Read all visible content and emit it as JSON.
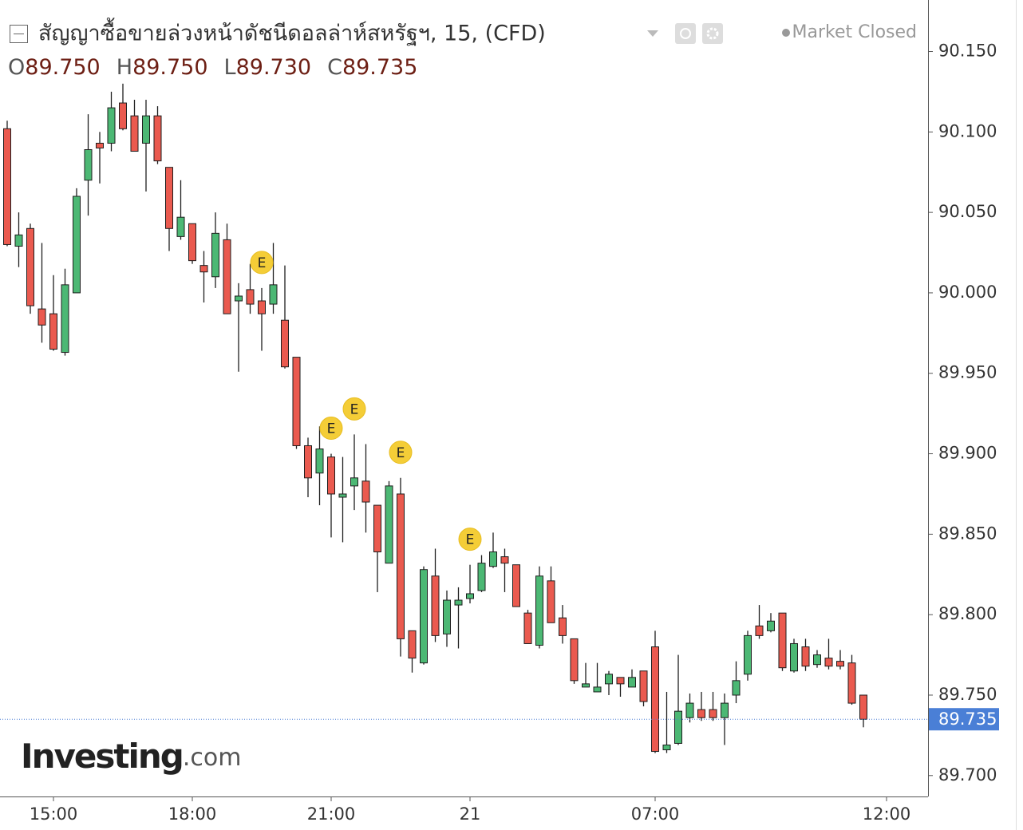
{
  "header": {
    "title": "สัญญาซื้อขายล่วงหน้าดัชนีดอลล่าห์สหรัฐฯ, 15, (CFD)",
    "status": "Market Closed",
    "ohlc": [
      {
        "key": "O",
        "value": "89.750"
      },
      {
        "key": "H",
        "value": "89.750"
      },
      {
        "key": "L",
        "value": "89.730"
      },
      {
        "key": "C",
        "value": "89.735"
      }
    ]
  },
  "watermark": {
    "brand": "Investing",
    "suffix": ".com"
  },
  "chart_data": {
    "type": "candlestick",
    "categories": [
      null,
      null,
      null,
      null,
      "15:00",
      null,
      null,
      null,
      null,
      null,
      null,
      null,
      null,
      null,
      null,
      null,
      "18:00",
      null,
      null,
      null,
      null,
      null,
      null,
      null,
      null,
      null,
      null,
      null,
      "21:00",
      null,
      null,
      null,
      null,
      null,
      null,
      null,
      null,
      null,
      null,
      null,
      "21",
      null,
      null,
      null,
      null,
      null,
      null,
      null,
      null,
      null,
      null,
      null,
      null,
      null,
      null,
      null,
      "07:00",
      null,
      null,
      null,
      null,
      null,
      null,
      null,
      null,
      null,
      null,
      null,
      null,
      null,
      null,
      null,
      null,
      null,
      null,
      null,
      "12:00"
    ],
    "open": [
      90.102,
      90.029,
      90.04,
      89.99,
      89.987,
      89.963,
      90.0,
      90.07,
      90.093,
      90.093,
      90.118,
      90.11,
      90.093,
      90.11,
      90.078,
      90.035,
      90.043,
      90.017,
      90.01,
      90.033,
      89.995,
      90.002,
      89.995,
      89.993,
      89.983,
      89.96,
      89.905,
      89.888,
      89.898,
      89.873,
      89.88,
      89.883,
      89.868,
      89.832,
      89.875,
      89.79,
      89.77,
      89.824,
      89.788,
      89.806,
      89.81,
      89.815,
      89.83,
      89.836,
      89.831,
      89.801,
      89.781,
      89.821,
      89.798,
      89.785,
      89.755,
      89.752,
      89.757,
      89.761,
      89.755,
      89.765,
      89.78,
      89.716,
      89.72,
      89.736,
      89.741,
      89.741,
      89.736,
      89.75,
      89.763,
      89.793,
      89.79,
      89.801,
      89.765,
      89.78,
      89.769,
      89.773,
      89.771,
      89.77,
      89.75,
      null,
      null
    ],
    "high": [
      90.107,
      90.05,
      90.043,
      90.031,
      90.011,
      90.015,
      90.065,
      90.111,
      90.1,
      90.125,
      90.13,
      90.12,
      90.12,
      90.116,
      90.078,
      90.07,
      90.043,
      90.026,
      90.05,
      90.043,
      90.006,
      90.018,
      90.003,
      90.031,
      90.017,
      89.96,
      89.91,
      89.917,
      89.9,
      89.898,
      89.912,
      89.906,
      89.868,
      89.883,
      89.885,
      89.79,
      89.83,
      89.841,
      89.815,
      89.817,
      89.831,
      89.837,
      89.851,
      89.841,
      89.831,
      89.803,
      89.83,
      89.83,
      89.806,
      89.785,
      89.77,
      89.77,
      89.765,
      89.761,
      89.766,
      89.765,
      89.79,
      89.752,
      89.775,
      89.751,
      89.752,
      89.752,
      89.751,
      89.771,
      89.79,
      89.806,
      89.801,
      89.801,
      89.785,
      89.785,
      89.778,
      89.785,
      89.778,
      89.775,
      89.75,
      null,
      null
    ],
    "low": [
      90.029,
      90.016,
      89.987,
      89.969,
      89.964,
      89.961,
      90.0,
      90.048,
      90.068,
      90.088,
      90.101,
      90.088,
      90.063,
      90.08,
      90.026,
      90.033,
      90.018,
      89.994,
      90.003,
      89.987,
      89.951,
      89.987,
      89.964,
      89.987,
      89.953,
      89.903,
      89.873,
      89.868,
      89.848,
      89.845,
      89.865,
      89.851,
      89.814,
      89.832,
      89.774,
      89.764,
      89.769,
      89.783,
      89.78,
      89.779,
      89.807,
      89.814,
      89.829,
      89.814,
      89.805,
      89.782,
      89.779,
      89.795,
      89.782,
      89.757,
      89.755,
      89.752,
      89.75,
      89.749,
      89.755,
      89.743,
      89.714,
      89.714,
      89.719,
      89.733,
      89.734,
      89.734,
      89.719,
      89.745,
      89.759,
      89.785,
      89.789,
      89.765,
      89.764,
      89.765,
      89.767,
      89.766,
      89.766,
      89.744,
      89.73,
      null,
      null
    ],
    "close": [
      90.03,
      90.036,
      89.992,
      89.98,
      89.965,
      90.005,
      90.06,
      90.089,
      90.09,
      90.115,
      90.102,
      90.088,
      90.11,
      90.082,
      90.04,
      90.047,
      90.02,
      90.013,
      90.037,
      89.987,
      89.998,
      89.993,
      89.987,
      90.005,
      89.954,
      89.905,
      89.885,
      89.903,
      89.875,
      89.875,
      89.885,
      89.87,
      89.839,
      89.88,
      89.785,
      89.773,
      89.828,
      89.787,
      89.809,
      89.809,
      89.813,
      89.832,
      89.839,
      89.832,
      89.805,
      89.782,
      89.824,
      89.795,
      89.787,
      89.759,
      89.757,
      89.755,
      89.763,
      89.757,
      89.761,
      89.746,
      89.715,
      89.719,
      89.74,
      89.745,
      89.736,
      89.736,
      89.745,
      89.759,
      89.787,
      89.787,
      89.796,
      89.767,
      89.782,
      89.768,
      89.775,
      89.768,
      89.768,
      89.745,
      89.735,
      null,
      null
    ],
    "up_color": "#4cb874",
    "down_color": "#ea5a4f",
    "events": [
      {
        "label": "E",
        "at": 22
      },
      {
        "label": "E",
        "at": 28
      },
      {
        "label": "E",
        "at": 30
      },
      {
        "label": "E",
        "at": 34
      },
      {
        "label": "E",
        "at": 40
      }
    ],
    "last_price": {
      "value": 89.735,
      "label": "89.735",
      "color": "#4a7fd6"
    },
    "ylim": [
      89.687,
      90.182
    ],
    "yticks": [
      {
        "value": 89.7,
        "label": "89.700"
      },
      {
        "value": 89.75,
        "label": "89.750"
      },
      {
        "value": 89.8,
        "label": "89.800"
      },
      {
        "value": 89.85,
        "label": "89.850"
      },
      {
        "value": 89.9,
        "label": "89.900"
      },
      {
        "value": 89.95,
        "label": "89.950"
      },
      {
        "value": 90.0,
        "label": "90.000"
      },
      {
        "value": 90.05,
        "label": "90.050"
      },
      {
        "value": 90.1,
        "label": "90.100"
      },
      {
        "value": 90.15,
        "label": "90.150"
      }
    ],
    "grid": false
  }
}
